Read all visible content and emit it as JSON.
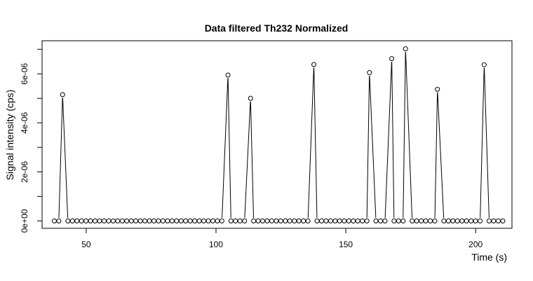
{
  "chart_data": {
    "type": "line",
    "title": "Data filtered Th232 Normalized",
    "xlabel": "Time (s)",
    "ylabel": "Signal intensity (cps)",
    "xlim": [
      33,
      214
    ],
    "ylim": [
      -3e-07,
      7.35e-06
    ],
    "x_ticks": [
      50,
      100,
      150,
      200
    ],
    "x_tick_labels": [
      "50",
      "100",
      "150",
      "200"
    ],
    "y_ticks": [
      0,
      2e-06,
      4e-06,
      6e-06
    ],
    "y_tick_labels": [
      "0e+00",
      "2e-06",
      "4e-06",
      "6e-06"
    ],
    "y_minor_ticks": [
      1e-06,
      3e-06,
      5e-06,
      7e-06
    ],
    "x_start": 37.7,
    "x_step": 1.745,
    "n_points": 100,
    "spikes": [
      {
        "x": 40.9,
        "y": 5.15e-06
      },
      {
        "x": 104.6,
        "y": 5.95e-06
      },
      {
        "x": 113.3,
        "y": 5e-06
      },
      {
        "x": 137.7,
        "y": 6.38e-06
      },
      {
        "x": 159.1,
        "y": 6.05e-06
      },
      {
        "x": 167.7,
        "y": 6.62e-06
      },
      {
        "x": 173.0,
        "y": 7.02e-06
      },
      {
        "x": 185.3,
        "y": 5.37e-06
      },
      {
        "x": 203.3,
        "y": 6.37e-06
      }
    ],
    "grid": false,
    "legend": "none",
    "line_color": "#000000",
    "marker": "open-circle"
  }
}
